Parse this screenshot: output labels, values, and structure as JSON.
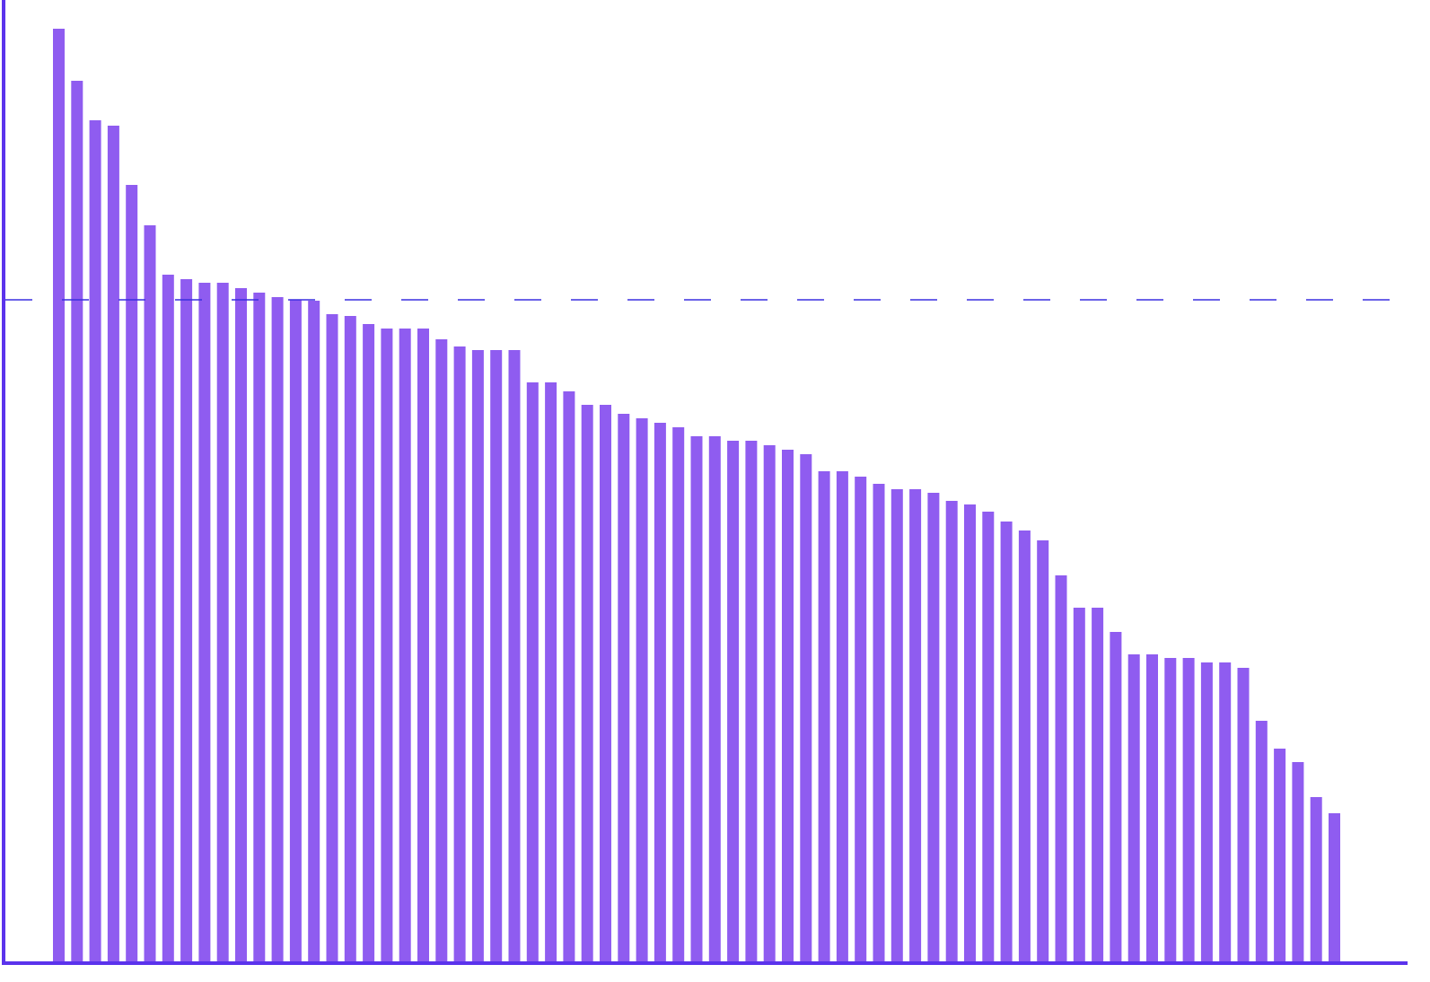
{
  "chart_data": {
    "type": "bar",
    "values": [
      1040,
      982,
      938,
      932,
      866,
      821,
      766,
      761,
      757,
      757,
      751,
      746,
      741,
      738,
      737,
      722,
      720,
      711,
      706,
      706,
      706,
      694,
      686,
      682,
      682,
      682,
      646,
      646,
      636,
      621,
      621,
      611,
      606,
      601,
      596,
      586,
      586,
      581,
      581,
      576,
      571,
      566,
      547,
      547,
      541,
      533,
      527,
      527,
      523,
      514,
      510,
      502,
      491,
      481,
      470,
      431,
      395,
      395,
      368,
      343,
      343,
      339,
      339,
      334,
      334,
      328,
      269,
      238,
      223,
      184,
      166
    ],
    "color": "#8f5cf0",
    "ylim": [
      0,
      1072
    ],
    "reference_line": 738,
    "reference_line_color": "#3a2ee0",
    "axis_color": "#5b33ec"
  }
}
